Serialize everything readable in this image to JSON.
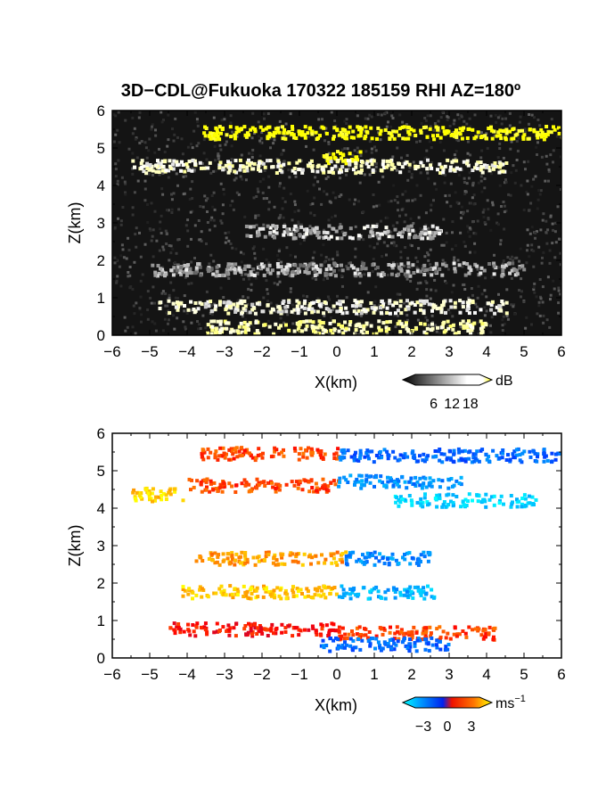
{
  "chart_data": [
    {
      "type": "heatmap",
      "panel": "reflectivity",
      "title": "3D−CDL@Fukuoka 170322 185159 RHI AZ=180º",
      "xlabel": "X(km)",
      "ylabel": "Z(km)",
      "xlim": [
        -6,
        6
      ],
      "ylim": [
        0,
        6
      ],
      "xticks": [
        "−6",
        "−5",
        "−4",
        "−3",
        "−2",
        "−1",
        "0",
        "1",
        "2",
        "3",
        "4",
        "5",
        "6"
      ],
      "yticks": [
        "0",
        "1",
        "2",
        "3",
        "4",
        "5",
        "6"
      ],
      "colorbar": {
        "unit": "dB",
        "ticks": [
          "6",
          "12",
          "18"
        ],
        "range": [
          0,
          21
        ],
        "colors": [
          "#000000",
          "#ffffff",
          "#ffff00"
        ]
      },
      "features": [
        {
          "z_km": 5.45,
          "x_range": [
            -3.6,
            6.0
          ],
          "value_db": 21
        },
        {
          "z_km": 4.8,
          "x_range": [
            -0.4,
            0.6
          ],
          "value_db": 21
        },
        {
          "z_km": 4.55,
          "x_range": [
            -5.5,
            4.5
          ],
          "value_db": 12
        },
        {
          "z_km": 2.8,
          "x_range": [
            -2.5,
            2.8
          ],
          "value_db": 8
        },
        {
          "z_km": 1.8,
          "x_range": [
            -5.0,
            5.0
          ],
          "value_db": 7
        },
        {
          "z_km": 0.8,
          "x_range": [
            -4.8,
            4.5
          ],
          "value_db": 11
        },
        {
          "z_km": 0.25,
          "x_range": [
            -3.5,
            4.0
          ],
          "value_db": 14
        }
      ]
    },
    {
      "type": "heatmap",
      "panel": "velocity",
      "xlabel": "X(km)",
      "ylabel": "Z(km)",
      "xlim": [
        -6,
        6
      ],
      "ylim": [
        0,
        6
      ],
      "xticks": [
        "−6",
        "−5",
        "−4",
        "−3",
        "−2",
        "−1",
        "0",
        "1",
        "2",
        "3",
        "4",
        "5",
        "6"
      ],
      "yticks": [
        "0",
        "1",
        "2",
        "3",
        "4",
        "5",
        "6"
      ],
      "colorbar": {
        "unit": "ms",
        "unit_exp": "−1",
        "ticks": [
          "−3",
          "0",
          "3"
        ],
        "range": [
          -4,
          4
        ],
        "colors": [
          "#00ffff",
          "#0033ff",
          "#ff0000",
          "#ffff00"
        ]
      },
      "features": [
        {
          "z_km": 5.5,
          "x_range": [
            -3.7,
            0.0
          ],
          "velocity_ms": 2.0
        },
        {
          "z_km": 5.45,
          "x_range": [
            0.0,
            6.0
          ],
          "velocity_ms": -2.0
        },
        {
          "z_km": 4.65,
          "x_range": [
            -4.0,
            0.0
          ],
          "velocity_ms": 2.0
        },
        {
          "z_km": 4.75,
          "x_range": [
            0.0,
            3.3
          ],
          "velocity_ms": -2.5
        },
        {
          "z_km": 4.4,
          "x_range": [
            -5.5,
            -4.0
          ],
          "velocity_ms": 3.5
        },
        {
          "z_km": 4.25,
          "x_range": [
            1.5,
            5.3
          ],
          "velocity_ms": -3.5
        },
        {
          "z_km": 2.7,
          "x_range": [
            -3.8,
            0.2
          ],
          "velocity_ms": 3.0
        },
        {
          "z_km": 2.7,
          "x_range": [
            0.2,
            2.5
          ],
          "velocity_ms": -2.5
        },
        {
          "z_km": 1.8,
          "x_range": [
            -4.2,
            0.0
          ],
          "velocity_ms": 3.5
        },
        {
          "z_km": 1.8,
          "x_range": [
            0.0,
            2.6
          ],
          "velocity_ms": -3.0
        },
        {
          "z_km": 0.8,
          "x_range": [
            -4.5,
            0.0
          ],
          "velocity_ms": 1.5
        },
        {
          "z_km": 0.7,
          "x_range": [
            0.0,
            4.2
          ],
          "velocity_ms": 2.0
        },
        {
          "z_km": 0.4,
          "x_range": [
            -0.5,
            3.0
          ],
          "velocity_ms": -2.0
        }
      ]
    }
  ]
}
